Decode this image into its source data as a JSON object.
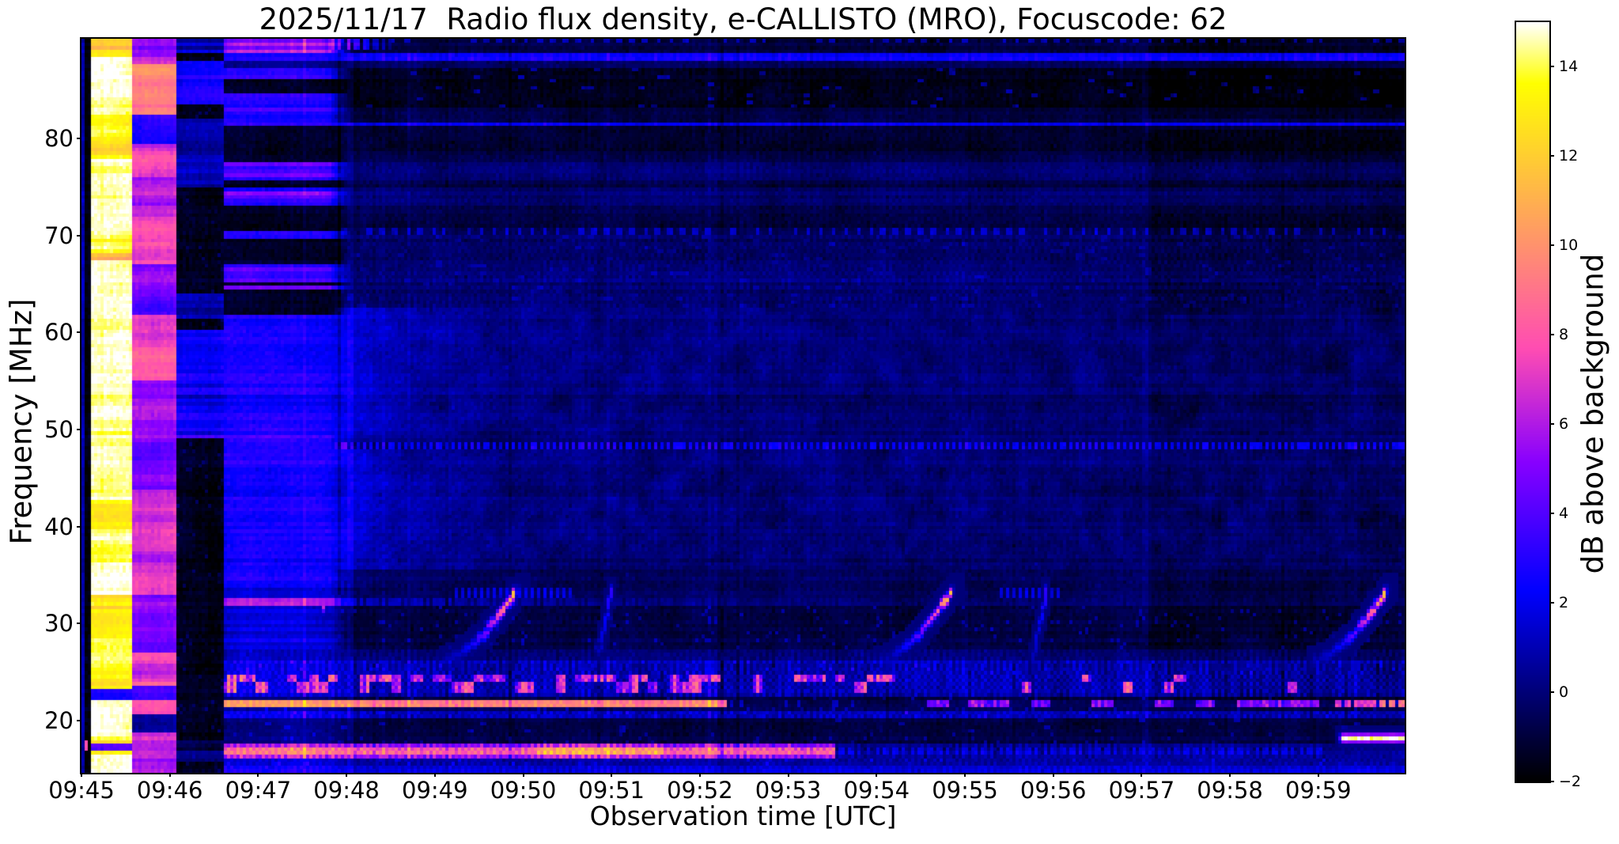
{
  "figure": {
    "title": "2025/11/17  Radio flux density, e-CALLISTO (MRO), Focuscode: 62",
    "background_color": "#ffffff",
    "text_color": "#000000"
  },
  "axes": {
    "xlabel": "Observation time [UTC]",
    "ylabel": "Frequency [MHz]",
    "x_tick_labels": [
      "09:45",
      "09:46",
      "09:47",
      "09:48",
      "09:49",
      "09:50",
      "09:51",
      "09:52",
      "09:53",
      "09:54",
      "09:55",
      "09:56",
      "09:57",
      "09:58",
      "09:59"
    ],
    "y_tick_labels": [
      "20",
      "30",
      "40",
      "50",
      "60",
      "70",
      "80"
    ],
    "y_tick_values": [
      20,
      30,
      40,
      50,
      60,
      70,
      80
    ]
  },
  "colorbar": {
    "label": "dB above background",
    "tick_labels": [
      "−2",
      "0",
      "2",
      "4",
      "6",
      "8",
      "10",
      "12",
      "14"
    ],
    "tick_values": [
      -2,
      0,
      2,
      4,
      6,
      8,
      10,
      12,
      14
    ],
    "vmin": -2,
    "vmax": 15
  },
  "chart_data": {
    "type": "heatmap",
    "subtype": "radio-spectrogram",
    "title": "2025/11/17  Radio flux density, e-CALLISTO (MRO), Focuscode: 62",
    "xlabel": "Observation time [UTC]",
    "ylabel": "Frequency [MHz]",
    "colorbar_label": "dB above background",
    "x_ticks": [
      "09:45",
      "09:46",
      "09:47",
      "09:48",
      "09:49",
      "09:50",
      "09:51",
      "09:52",
      "09:53",
      "09:54",
      "09:55",
      "09:56",
      "09:57",
      "09:58",
      "09:59"
    ],
    "time_start_utc": "09:45",
    "time_span_seconds": 898,
    "freq_range_mhz": [
      14.6,
      90.3
    ],
    "y_ticks_mhz": [
      20,
      30,
      40,
      50,
      60,
      70,
      80
    ],
    "value_range_db": [
      -2,
      15
    ],
    "colormap": {
      "name": "gnuplot2",
      "stops": [
        "#000000",
        "#0000ff",
        "#6a00ff",
        "#ff4caa",
        "#ffa864",
        "#ffff00",
        "#ffffff"
      ]
    },
    "legend_position": "right-colorbar",
    "grid": false,
    "features": {
      "calibration_columns": [
        {
          "t": [
            0,
            5.6
          ],
          "level_db": -1.8,
          "edge_sliver_db": 0.9,
          "desc": "thin black strip at left edge with blue first column"
        },
        {
          "t": [
            5.6,
            34
          ],
          "level_db": 15.0,
          "stripe_zones_mhz": [
            [
              88.3,
              90.3
            ],
            [
              76,
              84.5
            ],
            [
              67.5,
              70.5
            ],
            [
              48.3,
              50
            ],
            [
              36.5,
              44
            ],
            [
              23.4,
              33
            ],
            [
              16.3,
              18.2
            ]
          ],
          "stripe_min_db": 9.0,
          "desc": "saturated white column with yellow/orange striped zones"
        },
        {
          "t": [
            34,
            64
          ],
          "level_db": 7.6,
          "desc": "pink/magenta striped calibration column"
        },
        {
          "t": [
            64,
            97
          ],
          "level_db": -1.55,
          "blue_patches_mhz": [
            [
              49,
              60.5,
              2.2
            ],
            [
              83.5,
              88,
              2.6
            ],
            [
              75,
              82,
              0.9
            ],
            [
              61.5,
              64,
              0.5
            ],
            [
              15.8,
              17.8,
              0.6
            ],
            [
              88.8,
              90.3,
              1.5
            ]
          ],
          "desc": "dark column with blue patches"
        },
        {
          "t": [
            97,
            183
          ],
          "level_db": 2.75,
          "striped_above_mhz": 62,
          "stripe_dark_db": -1.35,
          "stripe_bright_db": 3.1,
          "top_pink_above_mhz": 88.8,
          "top_pink_db": 5.5,
          "desc": "bright blue band with horizontal black stripes in upper half"
        }
      ],
      "horizontal_lines": [
        {
          "f_mhz": 88.4,
          "v_db": 2.2,
          "style": "solid",
          "t": [
            97,
            898
          ]
        },
        {
          "f_mhz": 81.5,
          "v_db": 2.1,
          "style": "solid",
          "t": [
            97,
            898
          ]
        },
        {
          "f_mhz": 70.5,
          "v_db": 1.6,
          "style": "dashed",
          "t": [
            183,
            898
          ]
        },
        {
          "f_mhz": 48.2,
          "v_db": 2.4,
          "style": "dashed",
          "t": [
            97,
            898
          ]
        },
        {
          "f_mhz": 32.1,
          "v_db": 6.2,
          "style": "fading",
          "t": [
            97,
            400
          ]
        }
      ],
      "background_bands": [
        {
          "f_mhz": [
            89.3,
            90.3
          ],
          "v_db": -0.9,
          "top_edge_dashes_db": 1.6
        },
        {
          "f_mhz": [
            88.8,
            89.3
          ],
          "v_db": -1.1
        },
        {
          "f_mhz": [
            87.3,
            88.05
          ],
          "v_db": -0.35
        },
        {
          "f_mhz": [
            83.0,
            87.3
          ],
          "v_db": -1.45
        },
        {
          "f_mhz": [
            82.0,
            83.0
          ],
          "v_db": -0.7
        },
        {
          "f_mhz": [
            78.5,
            81.1
          ],
          "v_db": -0.95,
          "striped": true
        },
        {
          "f_mhz": [
            71.0,
            78.5
          ],
          "v_db": -0.55,
          "striped": true
        },
        {
          "f_mhz": [
            62.5,
            70.1
          ],
          "v_db": -0.35
        },
        {
          "f_mhz": [
            49.5,
            62.5
          ],
          "v_db": 0.65,
          "decays_with_time": true
        },
        {
          "f_mhz": [
            35.5,
            47.85
          ],
          "v_db": 0.3,
          "moire": true,
          "decays_with_time": true
        },
        {
          "f_mhz": [
            33.6,
            35.5
          ],
          "v_db": -0.55
        },
        {
          "f_mhz": [
            27.2,
            31.6
          ],
          "v_db": -0.8
        },
        {
          "f_mhz": [
            26.2,
            27.2
          ],
          "v_db": -0.25
        },
        {
          "f_mhz": [
            24.65,
            26.2
          ],
          "v_db": 0.8,
          "desc": "noisy blue dash band"
        },
        {
          "f_mhz": [
            22.45,
            24.65
          ],
          "v_db": 0.7,
          "desc": "noisy band with orange RFI blobs",
          "blob_peak_db": 9.5,
          "blobs_end_t": 552
        },
        {
          "f_mhz": [
            22.05,
            22.45
          ],
          "v_db": -0.85
        },
        {
          "f_mhz": [
            20.3,
            21.35
          ],
          "v_db": 0.9
        },
        {
          "f_mhz": [
            18.6,
            20.3
          ],
          "v_db": -1.05
        },
        {
          "f_mhz": [
            17.55,
            18.6
          ],
          "v_db": -0.8
        },
        {
          "f_mhz": [
            15.3,
            16.15
          ],
          "v_db": 0.55
        },
        {
          "f_mhz": [
            14.6,
            15.3
          ],
          "v_db": 1.3
        }
      ],
      "rfi_lines": [
        {
          "f_mhz": [
            21.35,
            22.05
          ],
          "v_db": 10.3,
          "t_bright_end": 438,
          "desc": "continuous yellow-orange carrier, stops 09:52:18, pink dashes later",
          "late_segments_db": 4.5,
          "end_segment_t": [
            850,
            898
          ],
          "end_segment_db": 6.5
        },
        {
          "f_mhz": [
            16.15,
            17.55
          ],
          "v_db": 8.0,
          "t_bright_end": 512,
          "desc": "strong dashed orange RFI rope, blue dashes after 09:53:30",
          "white_spots_t": [
            310,
            395
          ]
        }
      ],
      "bursts": {
        "desc": "ionosonde frequency sweeps, repeating about every 5 minutes",
        "events_t": [
          247,
          542,
          837
        ],
        "slow_segment": {
          "duration_s": 47,
          "f_mhz": [
            26.2,
            33.0
          ],
          "v_peak_db": 11.5,
          "shape": "accelerating upward drift"
        },
        "steep_segment": {
          "t_offset_s": 104,
          "duration_s": 9,
          "f_mhz": [
            26.4,
            33.6
          ],
          "v_db": 3.2
        },
        "dash_trains_33mhz": [
          {
            "f_mhz": 33.2,
            "t": [
              253,
              335
            ]
          },
          {
            "f_mhz": 33.4,
            "t": [
              620,
              665
            ]
          }
        ],
        "point_burst": {
          "t": 165,
          "f_mhz": 31.8,
          "v_db": 6.5
        }
      },
      "bottom_right_blob": {
        "t": [
          857,
          898
        ],
        "f_mhz": [
          17.95,
          18.65
        ],
        "v_db": 13.5,
        "desc": "bright white/yellow RFI blob near 18.3 MHz at end"
      },
      "vertical_line": {
        "t": 722,
        "v_db": 1.1,
        "desc": "faint blue full-height line at 09:57"
      },
      "dim_after_t": {
        "t": 722,
        "high_band_drop_db": 0.5,
        "low_band_drop_db": 0.35
      }
    }
  },
  "render": {
    "seed": 1311,
    "nx": 418,
    "ny": 202
  }
}
